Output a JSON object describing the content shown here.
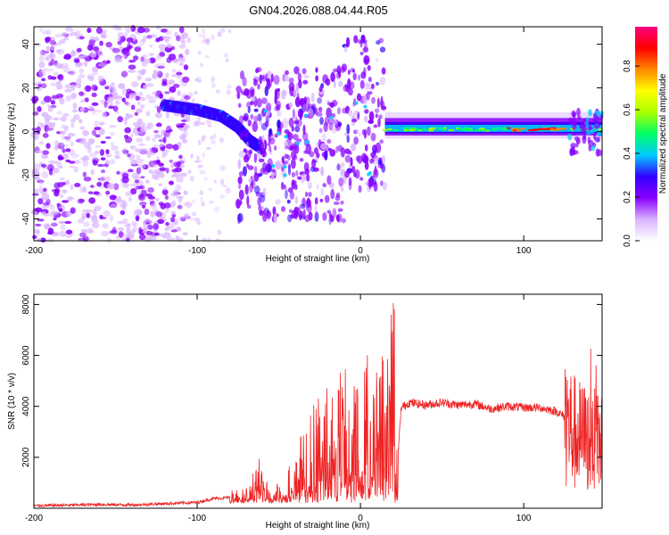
{
  "title": "GN04.2026.088.04.44.R05",
  "chart_data": [
    {
      "type": "heatmap",
      "name": "spectrogram",
      "xlabel": "Height of straight line (km)",
      "ylabel": "Frequency (Hz)",
      "xlim": [
        -200,
        148
      ],
      "ylim": [
        -50,
        48
      ],
      "xticks": [
        -200,
        -100,
        0,
        100
      ],
      "xtick_labels": [
        "-200",
        "-100",
        "0",
        "100"
      ],
      "yticks": [
        -40,
        -20,
        0,
        20,
        40
      ],
      "ytick_labels": [
        "-40",
        "-20",
        "0",
        "20",
        "40"
      ],
      "colorbar": {
        "label": "Normalized spectral amplitude",
        "range": [
          0,
          0.98
        ],
        "ticks": [
          0.0,
          0.2,
          0.4,
          0.6,
          0.8
        ],
        "tick_labels": [
          "0.0",
          "0.2",
          "0.4",
          "0.6",
          "0.8"
        ],
        "colormap": [
          "#ffffff",
          "#d9b3ff",
          "#8800ff",
          "#3300ff",
          "#00ccff",
          "#00ff66",
          "#aaff00",
          "#ffff00",
          "#ff8800",
          "#ff0000",
          "#ff0080"
        ]
      },
      "features": {
        "noise_region_x": [
          -200,
          -105
        ],
        "drifting_signal": [
          [
            -120,
            12
          ],
          [
            -100,
            10
          ],
          [
            -85,
            7
          ],
          [
            -75,
            2
          ],
          [
            -68,
            -4
          ],
          [
            -60,
            -8
          ]
        ],
        "steady_signal_x": [
          15,
          148
        ],
        "steady_signal_freq": 1
      }
    },
    {
      "type": "line",
      "name": "snr",
      "xlabel": "Height of straight line (km)",
      "ylabel": "SNR (10 * v/v)",
      "xlim": [
        -200,
        148
      ],
      "ylim": [
        0,
        8400
      ],
      "xticks": [
        -200,
        -100,
        0,
        100
      ],
      "xtick_labels": [
        "-200",
        "-100",
        "0",
        "100"
      ],
      "yticks": [
        2000,
        4000,
        6000,
        8000
      ],
      "ytick_labels": [
        "2000",
        "4000",
        "6000",
        "8000"
      ],
      "color": "#ee2222",
      "x": [
        -200,
        -180,
        -160,
        -140,
        -120,
        -100,
        -90,
        -80,
        -70,
        -62,
        -55,
        -45,
        -40,
        -35,
        -30,
        -25,
        -20,
        -15,
        -10,
        -5,
        0,
        5,
        10,
        15,
        20,
        22,
        25,
        30,
        40,
        50,
        60,
        70,
        80,
        90,
        100,
        110,
        120,
        125,
        130,
        135,
        140,
        148
      ],
      "values": [
        100,
        120,
        150,
        130,
        180,
        230,
        380,
        420,
        500,
        1500,
        350,
        1200,
        1600,
        1800,
        2400,
        2800,
        3000,
        3300,
        3400,
        3500,
        3600,
        3800,
        4000,
        4200,
        4600,
        1200,
        3950,
        4150,
        4050,
        4150,
        4050,
        4100,
        3900,
        4000,
        3950,
        3950,
        3800,
        3600,
        3000,
        2800,
        2700,
        2500
      ]
    }
  ]
}
